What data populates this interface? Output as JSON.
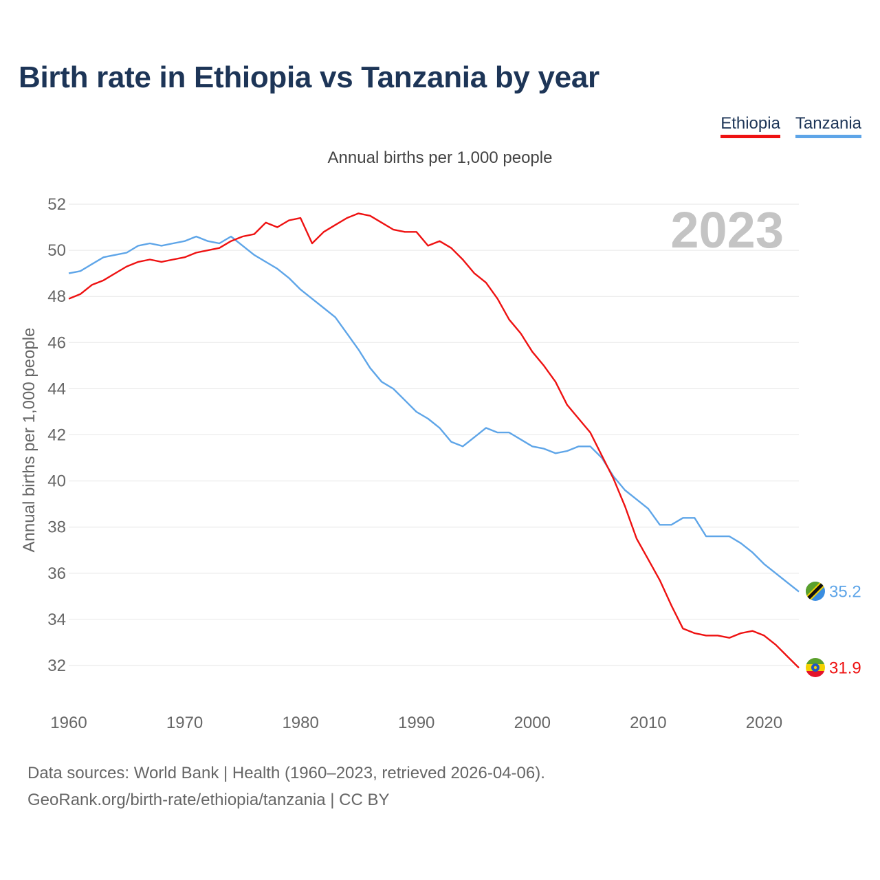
{
  "title": "Birth rate in Ethiopia vs Tanzania by year",
  "legend": [
    {
      "label": "Ethiopia",
      "color": "#ee1111"
    },
    {
      "label": "Tanzania",
      "color": "#5ea5e8"
    }
  ],
  "subtitle": "Annual births per 1,000 people",
  "footer": {
    "line1": "Data sources: World Bank | Health (1960–2023, retrieved 2026-04-06).",
    "line2": "GeoRank.org/birth-rate/ethiopia/tanzania | CC BY"
  },
  "chart_data": {
    "type": "line",
    "title": "Birth rate in Ethiopia vs Tanzania by year",
    "ylabel": "Annual births per 1,000 people",
    "xlabel": "",
    "year_label": "2023",
    "xlim": [
      1960,
      2023
    ],
    "ylim": [
      31,
      52
    ],
    "xticks": [
      1960,
      1970,
      1980,
      1990,
      2000,
      2010,
      2020
    ],
    "yticks": [
      32,
      34,
      36,
      38,
      40,
      42,
      44,
      46,
      48,
      50,
      52
    ],
    "grid": true,
    "legend_position": "top-right",
    "x": [
      1960,
      1961,
      1962,
      1963,
      1964,
      1965,
      1966,
      1967,
      1968,
      1969,
      1970,
      1971,
      1972,
      1973,
      1974,
      1975,
      1976,
      1977,
      1978,
      1979,
      1980,
      1981,
      1982,
      1983,
      1984,
      1985,
      1986,
      1987,
      1988,
      1989,
      1990,
      1991,
      1992,
      1993,
      1994,
      1995,
      1996,
      1997,
      1998,
      1999,
      2000,
      2001,
      2002,
      2003,
      2004,
      2005,
      2006,
      2007,
      2008,
      2009,
      2010,
      2011,
      2012,
      2013,
      2014,
      2015,
      2016,
      2017,
      2018,
      2019,
      2020,
      2021,
      2022,
      2023
    ],
    "series": [
      {
        "name": "Ethiopia",
        "color": "#ee1111",
        "end_label": "31.9",
        "flag": "ethiopia-flag-icon",
        "values": [
          47.9,
          48.1,
          48.5,
          48.7,
          49.0,
          49.3,
          49.5,
          49.6,
          49.5,
          49.6,
          49.7,
          49.9,
          50.0,
          50.1,
          50.4,
          50.6,
          50.7,
          51.2,
          51.0,
          51.3,
          51.4,
          50.3,
          50.8,
          51.1,
          51.4,
          51.6,
          51.5,
          51.2,
          50.9,
          50.8,
          50.8,
          50.2,
          50.4,
          50.1,
          49.6,
          49.0,
          48.6,
          47.9,
          47.0,
          46.4,
          45.6,
          45.0,
          44.3,
          43.3,
          42.7,
          42.1,
          41.1,
          40.1,
          38.9,
          37.5,
          36.6,
          35.7,
          34.6,
          33.6,
          33.4,
          33.3,
          33.3,
          33.2,
          33.4,
          33.5,
          33.3,
          32.9,
          32.4,
          31.9
        ]
      },
      {
        "name": "Tanzania",
        "color": "#5ea5e8",
        "end_label": "35.2",
        "flag": "tanzania-flag-icon",
        "values": [
          49.0,
          49.1,
          49.4,
          49.7,
          49.8,
          49.9,
          50.2,
          50.3,
          50.2,
          50.3,
          50.4,
          50.6,
          50.4,
          50.3,
          50.6,
          50.2,
          49.8,
          49.5,
          49.2,
          48.8,
          48.3,
          47.9,
          47.5,
          47.1,
          46.4,
          45.7,
          44.9,
          44.3,
          44.0,
          43.5,
          43.0,
          42.7,
          42.3,
          41.7,
          41.5,
          41.9,
          42.3,
          42.1,
          42.1,
          41.8,
          41.5,
          41.4,
          41.2,
          41.3,
          41.5,
          41.5,
          41.0,
          40.2,
          39.6,
          39.2,
          38.8,
          38.1,
          38.1,
          38.4,
          38.4,
          37.6,
          37.6,
          37.6,
          37.3,
          36.9,
          36.4,
          36.0,
          35.6,
          35.2
        ]
      }
    ]
  }
}
